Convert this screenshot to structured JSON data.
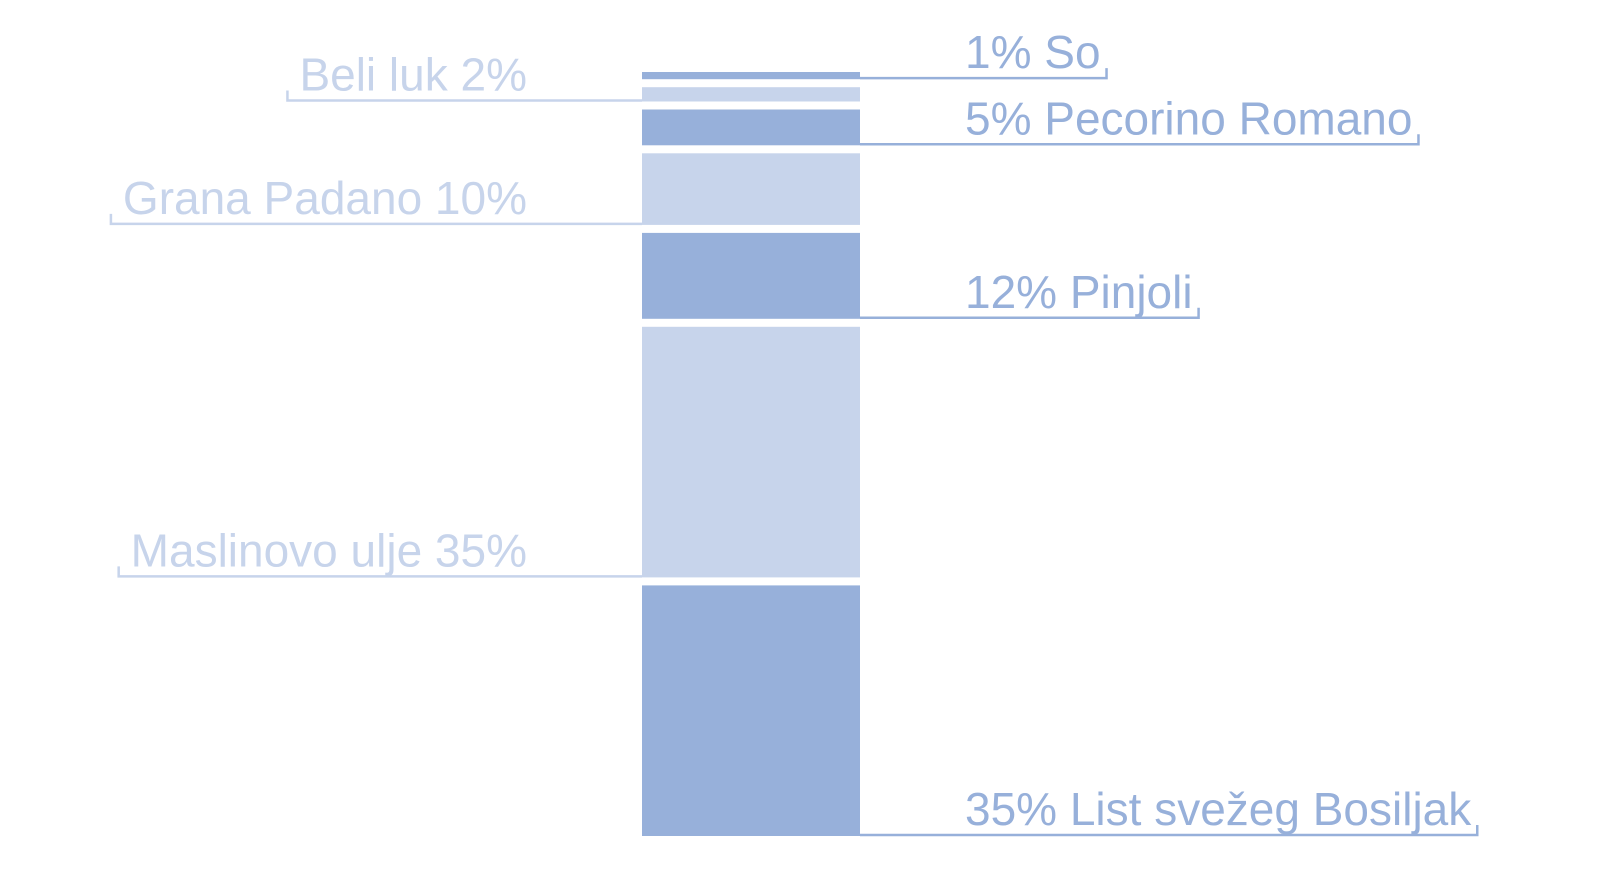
{
  "chart_data": {
    "type": "bar",
    "stacked": true,
    "orientation": "vertical",
    "total": 100,
    "label_style": "leader-lines, alternating left and right",
    "colors": {
      "dark": "#97b0da",
      "light": "#c7d4eb"
    },
    "segments": [
      {
        "name": "List svežeg Bosiljak",
        "value": 35,
        "label": "35% List svežeg Bosiljak",
        "side": "right",
        "tone": "dark"
      },
      {
        "name": "Maslinovo ulje",
        "value": 35,
        "label": "Maslinovo ulje 35%",
        "side": "left",
        "tone": "light"
      },
      {
        "name": "Pinjoli",
        "value": 12,
        "label": "12% Pinjoli",
        "side": "right",
        "tone": "dark"
      },
      {
        "name": "Grana Padano",
        "value": 10,
        "label": "Grana Padano 10%",
        "side": "left",
        "tone": "light"
      },
      {
        "name": "Pecorino Romano",
        "value": 5,
        "label": "5% Pecorino Romano",
        "side": "right",
        "tone": "dark"
      },
      {
        "name": "Beli luk",
        "value": 2,
        "label": "Beli luk 2%",
        "side": "left",
        "tone": "light"
      },
      {
        "name": "So",
        "value": 1,
        "label": "1% So",
        "side": "right",
        "tone": "dark"
      }
    ]
  }
}
